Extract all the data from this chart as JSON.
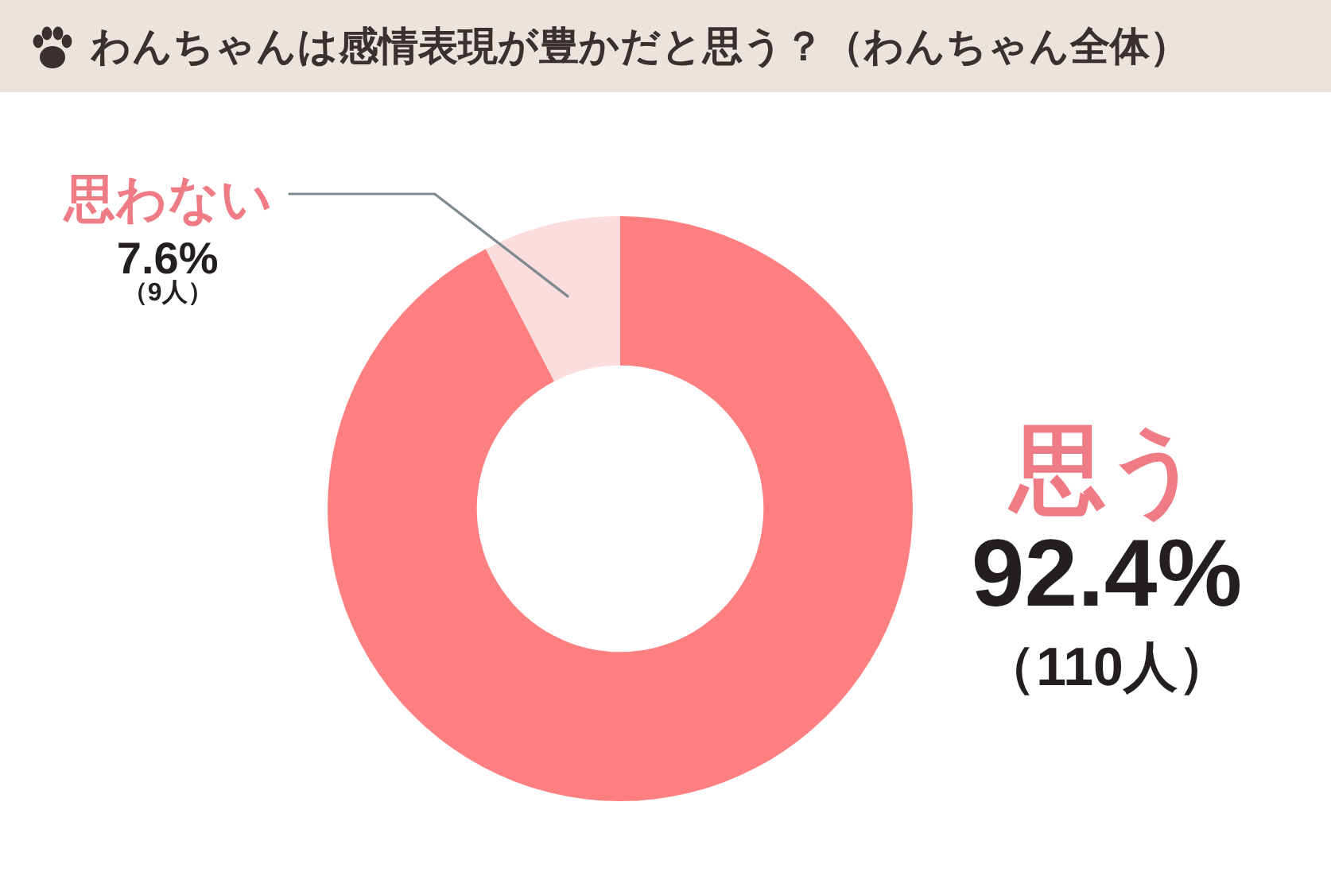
{
  "chart_data": {
    "type": "donut",
    "title": "わんちゃんは感情表現が豊かだと思う？（わんちゃん全体）",
    "categories": [
      "思う",
      "思わない"
    ],
    "values": [
      92.4,
      7.6
    ],
    "colors": [
      "#fd7f7f",
      "#fcdddd"
    ],
    "value_labels": [
      "92.4%",
      "7.6%"
    ],
    "annotations": [
      {
        "text": "（110人）",
        "x": "思う"
      },
      {
        "text": "（9人）",
        "x": "思わない"
      }
    ]
  }
}
